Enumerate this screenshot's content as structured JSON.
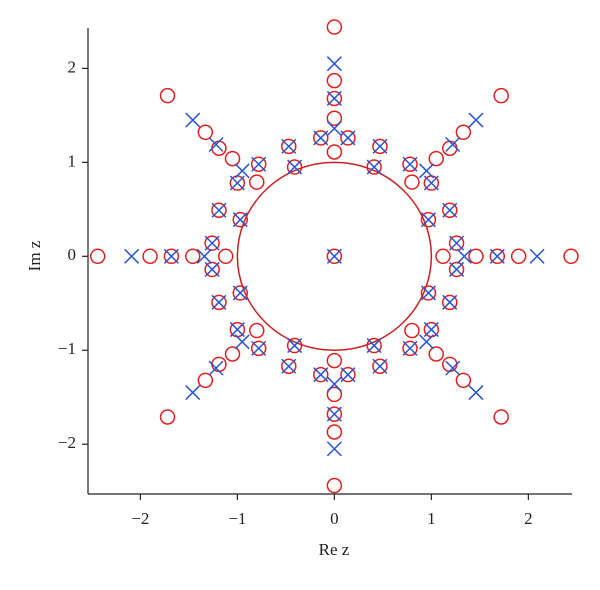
{
  "chart_data": {
    "type": "scatter",
    "xlabel": "Re z",
    "ylabel": "Im z",
    "xlim": [
      -2.54,
      2.45
    ],
    "ylim": [
      -2.53,
      2.43
    ],
    "xticks": [
      {
        "value": -2,
        "label": "−2"
      },
      {
        "value": -1,
        "label": "−1"
      },
      0,
      1,
      2
    ],
    "yticks": [
      {
        "value": -2,
        "label": "−2"
      },
      {
        "value": -1,
        "label": "−1"
      },
      0,
      1,
      2
    ],
    "unit_circle": {
      "radius": 1,
      "color": "#cc1f1f"
    },
    "series": [
      {
        "marker": "circle",
        "color": "#e02020",
        "x": [
          0.14,
          0.47,
          0.41,
          0.78,
          0.8,
          1.05,
          1.0,
          1.19,
          0.97,
          1.33,
          1.72,
          1.19,
          1.26,
          -0.14,
          -0.47,
          -0.41,
          -0.78,
          -0.8,
          -1.05,
          -1.0,
          -1.19,
          -0.97,
          -1.33,
          -1.72,
          -1.19,
          -1.26,
          -0.14,
          -0.47,
          -0.41,
          -0.78,
          -0.8,
          -1.05,
          -1.0,
          -1.19,
          -0.97,
          -1.33,
          -1.72,
          -1.19,
          -1.26,
          0.14,
          0.47,
          0.41,
          0.78,
          0.8,
          1.05,
          1.0,
          1.19,
          0.97,
          1.33,
          1.72,
          1.19,
          1.26,
          0,
          0,
          0,
          0,
          0,
          0,
          0,
          0,
          0,
          0,
          0,
          2.44,
          -2.44,
          1.9,
          -1.9,
          1.68,
          -1.68,
          1.46,
          -1.46,
          1.12,
          -1.12
        ],
        "y": [
          1.26,
          1.17,
          0.95,
          0.98,
          0.79,
          1.04,
          0.78,
          0.49,
          0.39,
          1.32,
          1.71,
          1.15,
          0.14,
          1.26,
          1.17,
          0.95,
          0.98,
          0.79,
          1.04,
          0.78,
          0.49,
          0.39,
          1.32,
          1.71,
          1.15,
          0.14,
          -1.26,
          -1.17,
          -0.95,
          -0.98,
          -0.79,
          -1.04,
          -0.78,
          -0.49,
          -0.39,
          -1.32,
          -1.71,
          -1.15,
          -0.14,
          -1.26,
          -1.17,
          -0.95,
          -0.98,
          -0.79,
          -1.04,
          -0.78,
          -0.49,
          -0.39,
          -1.32,
          -1.71,
          -1.15,
          -0.14,
          2.44,
          -2.44,
          1.87,
          -1.87,
          1.68,
          -1.68,
          1.47,
          -1.47,
          1.11,
          -1.11,
          0,
          0,
          0,
          0,
          0,
          0,
          0,
          0,
          0,
          0,
          0
        ]
      },
      {
        "marker": "cross",
        "color": "#2a55d0",
        "x": [
          0.14,
          0.47,
          0.41,
          0.78,
          1.0,
          1.19,
          0.97,
          1.26,
          1.46,
          1.22,
          0.95,
          -0.14,
          -0.47,
          -0.41,
          -0.78,
          -1.0,
          -1.19,
          -0.97,
          -1.26,
          -1.46,
          -1.22,
          -0.95,
          -0.14,
          -0.47,
          -0.41,
          -0.78,
          -1.0,
          -1.19,
          -0.97,
          -1.26,
          -1.46,
          -1.22,
          -0.95,
          0.14,
          0.47,
          0.41,
          0.78,
          1.0,
          1.19,
          0.97,
          1.26,
          1.46,
          1.22,
          0.95,
          0,
          0,
          0,
          0,
          0,
          0,
          0,
          2.09,
          -2.09,
          1.68,
          -1.68,
          1.34,
          -1.34
        ],
        "y": [
          1.26,
          1.17,
          0.95,
          0.98,
          0.78,
          0.49,
          0.39,
          0.14,
          1.45,
          1.19,
          0.91,
          1.26,
          1.17,
          0.95,
          0.98,
          0.78,
          0.49,
          0.39,
          0.14,
          1.45,
          1.19,
          0.91,
          -1.26,
          -1.17,
          -0.95,
          -0.98,
          -0.78,
          -0.49,
          -0.39,
          -0.14,
          -1.45,
          -1.19,
          -0.91,
          -1.26,
          -1.17,
          -0.95,
          -0.98,
          -0.78,
          -0.49,
          -0.39,
          -0.14,
          -1.45,
          -1.19,
          -0.91,
          2.05,
          -2.05,
          1.68,
          -1.68,
          1.36,
          -1.36,
          0,
          0,
          0,
          0,
          0,
          0,
          0
        ]
      }
    ]
  }
}
